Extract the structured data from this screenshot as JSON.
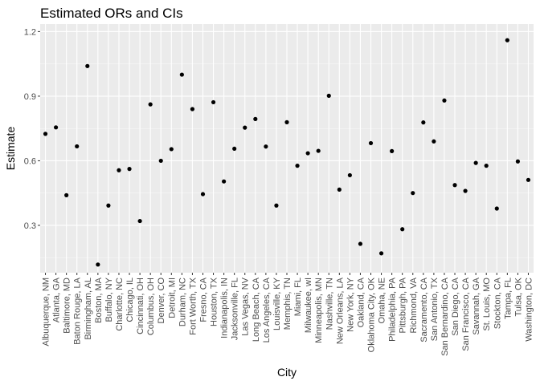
{
  "chart_data": {
    "type": "scatter",
    "title": "Estimated ORs and CIs",
    "xlabel": "City",
    "ylabel": "Estimate",
    "ylim": [
      0.08,
      1.235
    ],
    "y_ticks": [
      0.3,
      0.6,
      0.9,
      1.2
    ],
    "y_tick_labels": [
      "0.3",
      "0.6",
      "0.9",
      "1.2"
    ],
    "grid": true,
    "panel_color": "#ebebeb",
    "point_color": "#000000",
    "categories": [
      "Albuquerque, NM",
      "Atlanta, GA",
      "Baltimore, MD",
      "Baton Rouge, LA",
      "Birmingham, AL",
      "Boston, MA",
      "Buffalo, NY",
      "Charlotte, NC",
      "Chicago, IL",
      "Cincinnati, OH",
      "Columbus, OH",
      "Denver, CO",
      "Detroit, MI",
      "Durham, NC",
      "Fort Worth, TX",
      "Fresno, CA",
      "Houston, TX",
      "Indianapolis, IN",
      "Jacksonville, FL",
      "Las Vegas, NV",
      "Long Beach, CA",
      "Los Angeles, CA",
      "Louisville, KY",
      "Memphis, TN",
      "Miami, FL",
      "Milwaukee, wI",
      "Minneapolis, MN",
      "Nashville, TN",
      "New Orleans, LA",
      "New York, NY",
      "Oakland, CA",
      "Oklahoma City, OK",
      "Omaha, NE",
      "Philadelphia, PA",
      "Pittsburgh, PA",
      "Richmond, VA",
      "Sacramento, CA",
      "San Antonio, TX",
      "San Bernardino, CA",
      "San Diego, CA",
      "San Francisco, CA",
      "Savannah, GA",
      "St. Louis, MO",
      "Stockton, CA",
      "Tampa, FL",
      "Tulsa, OK",
      "Washington, DC"
    ],
    "values": [
      0.725,
      0.755,
      0.44,
      0.667,
      1.04,
      0.118,
      0.392,
      0.556,
      0.562,
      0.32,
      0.862,
      0.6,
      0.654,
      1.0,
      0.84,
      0.445,
      0.872,
      0.504,
      0.656,
      0.754,
      0.794,
      0.666,
      0.392,
      0.779,
      0.577,
      0.635,
      0.646,
      0.902,
      0.466,
      0.533,
      0.214,
      0.682,
      0.17,
      0.645,
      0.282,
      0.45,
      0.778,
      0.69,
      0.88,
      0.487,
      0.46,
      0.59,
      0.577,
      0.378,
      1.16,
      0.597,
      0.511
    ]
  }
}
